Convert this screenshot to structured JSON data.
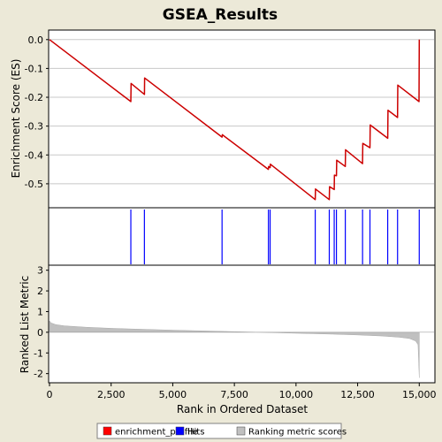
{
  "chart_data": {
    "type": "line",
    "title": "GSEA_Results",
    "xlabel": "Rank in Ordered Dataset",
    "xlim": [
      0,
      15600
    ],
    "x_ticks": [
      "0",
      "2,500",
      "5,000",
      "7,500",
      "10,000",
      "12,500",
      "15,000"
    ],
    "x_tick_values": [
      0,
      2500,
      5000,
      7500,
      10000,
      12500,
      15000
    ],
    "panels": {
      "enrichment": {
        "ylabel": "Enrichment Score (ES)",
        "ylim": [
          -0.58,
          0.03
        ],
        "y_ticks": [
          "0.0",
          "-0.1",
          "-0.2",
          "-0.3",
          "-0.4",
          "-0.5"
        ],
        "y_tick_values": [
          0,
          -0.1,
          -0.2,
          -0.3,
          -0.4,
          -0.5
        ]
      },
      "hits": {},
      "metric": {
        "ylabel": "Ranked List Metric",
        "ylim": [
          -2.4,
          3.2
        ],
        "y_ticks": [
          "3",
          "2",
          "1",
          "0",
          "-1",
          "-2"
        ],
        "y_tick_values": [
          3,
          2,
          1,
          0,
          -1,
          -2
        ]
      }
    },
    "series": [
      {
        "name": "enrichment_profile",
        "color": "#CC0000",
        "points": [
          [
            0,
            0.0
          ],
          [
            3300,
            -0.215
          ],
          [
            3310,
            -0.152
          ],
          [
            3850,
            -0.19
          ],
          [
            3860,
            -0.133
          ],
          [
            7000,
            -0.338
          ],
          [
            7010,
            -0.33
          ],
          [
            8880,
            -0.45
          ],
          [
            8890,
            -0.44
          ],
          [
            8950,
            -0.444
          ],
          [
            8960,
            -0.432
          ],
          [
            10780,
            -0.555
          ],
          [
            10790,
            -0.518
          ],
          [
            11350,
            -0.555
          ],
          [
            11360,
            -0.51
          ],
          [
            11550,
            -0.52
          ],
          [
            11560,
            -0.47
          ],
          [
            11640,
            -0.472
          ],
          [
            11650,
            -0.418
          ],
          [
            12000,
            -0.44
          ],
          [
            12010,
            -0.382
          ],
          [
            12700,
            -0.43
          ],
          [
            12710,
            -0.36
          ],
          [
            13000,
            -0.375
          ],
          [
            13010,
            -0.296
          ],
          [
            13720,
            -0.342
          ],
          [
            13730,
            -0.245
          ],
          [
            14120,
            -0.27
          ],
          [
            14130,
            -0.158
          ],
          [
            14990,
            -0.215
          ],
          [
            15000,
            0.0
          ]
        ]
      }
    ],
    "hits": [
      3300,
      3850,
      7000,
      8880,
      8950,
      10780,
      11350,
      11550,
      11640,
      12000,
      12700,
      13000,
      13720,
      14120,
      15000
    ],
    "ranking_metric": {
      "name": "Ranking metric scores",
      "color": "#C0C0C0",
      "points": [
        [
          0,
          0.55
        ],
        [
          60,
          0.45
        ],
        [
          250,
          0.37
        ],
        [
          600,
          0.31
        ],
        [
          1500,
          0.24
        ],
        [
          2500,
          0.19
        ],
        [
          3500,
          0.15
        ],
        [
          5000,
          0.1
        ],
        [
          6500,
          0.06
        ],
        [
          7500,
          0.03
        ],
        [
          8600,
          0.0
        ],
        [
          9500,
          -0.03
        ],
        [
          10500,
          -0.06
        ],
        [
          11500,
          -0.09
        ],
        [
          12500,
          -0.13
        ],
        [
          13500,
          -0.18
        ],
        [
          14200,
          -0.24
        ],
        [
          14600,
          -0.3
        ],
        [
          14850,
          -0.42
        ],
        [
          14950,
          -0.6
        ],
        [
          15000,
          -2.2
        ]
      ]
    },
    "legend": {
      "position": "bottom-center",
      "items": [
        {
          "label": "enrichment_profile",
          "color": "#FF0000"
        },
        {
          "label": "Hits",
          "color": "#0000FF"
        },
        {
          "label": "Ranking metric scores",
          "color": "#C0C0C0"
        }
      ]
    }
  }
}
